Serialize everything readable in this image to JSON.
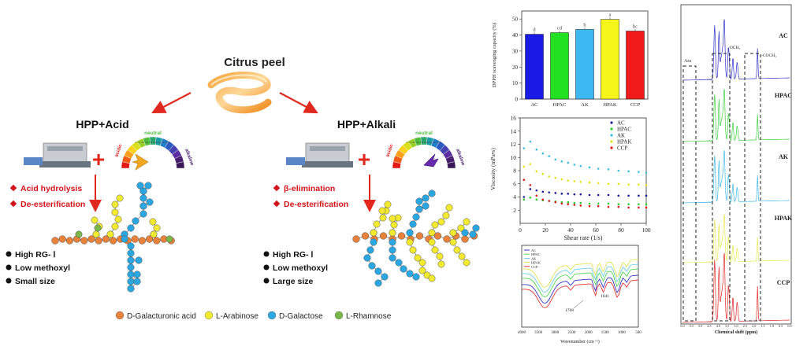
{
  "scheme": {
    "source_title": "Citrus peel",
    "left": {
      "title": "HPP+Acid",
      "steps": [
        "Acid hydrolysis",
        "De-esterification"
      ],
      "props": [
        "High RG- Ⅰ",
        "Low methoxyl",
        "Small size"
      ]
    },
    "right": {
      "title": "HPP+Alkali",
      "steps": [
        "β-elimination",
        "De-esterification"
      ],
      "props": [
        "High RG- Ⅰ",
        "Low methoxyl",
        "Large size"
      ]
    },
    "gauge": {
      "left_word": "acidic",
      "top_word": "neutral",
      "right_word": "alkaline",
      "scale": "0 1 2 3 4 5 6 7 8 9 10 11 12 13 14"
    },
    "legend": [
      {
        "label": "D-Galacturonic acid",
        "color": "#e8823a"
      },
      {
        "label": "L-Arabinose",
        "color": "#f2ea2e"
      },
      {
        "label": "D-Galactose",
        "color": "#2aa6e0"
      },
      {
        "label": "L-Rhamnose",
        "color": "#7ab648"
      }
    ],
    "colors": {
      "arrow": "#e0281e",
      "plus": "#e0281e",
      "step_text": "#d4141c"
    }
  },
  "chart_data": [
    {
      "type": "bar",
      "ylabel": "DPPH scavenging capacity (%)",
      "categories": [
        "AC",
        "HPAC",
        "AK",
        "HPAK",
        "CCP"
      ],
      "values": [
        40.5,
        41.5,
        43.5,
        49.8,
        42.5
      ],
      "letters": [
        "d",
        "cd",
        "b",
        "a",
        "bc"
      ],
      "colors": [
        "#1a1ae6",
        "#22e022",
        "#3db8f0",
        "#f5f51a",
        "#f01a1a"
      ],
      "ylim": [
        0,
        55
      ],
      "yticks": [
        "0",
        "10",
        "20",
        "30",
        "40",
        "50"
      ]
    },
    {
      "type": "scatter",
      "xlabel": "Shear rate (1/s)",
      "ylabel": "Viscosity (mPa•s)",
      "xlim": [
        0,
        100
      ],
      "ylim": [
        0,
        16
      ],
      "xticks": [
        "0",
        "20",
        "40",
        "60",
        "80",
        "100"
      ],
      "yticks": [
        "2",
        "4",
        "6",
        "8",
        "10",
        "12",
        "14",
        "16"
      ],
      "series": [
        {
          "name": "AC",
          "color": "#1a1a9a",
          "x": [
            3,
            8,
            13,
            18,
            23,
            28,
            33,
            38,
            43,
            48,
            55,
            62,
            70,
            78,
            86,
            94,
            100
          ],
          "y": [
            4.0,
            5.2,
            5.0,
            4.8,
            4.7,
            4.6,
            4.5,
            4.5,
            4.4,
            4.4,
            4.3,
            4.3,
            4.3,
            4.2,
            4.2,
            4.2,
            4.2
          ]
        },
        {
          "name": "HPAC",
          "color": "#2ad02a",
          "x": [
            3,
            8,
            13,
            18,
            23,
            28,
            33,
            38,
            43,
            48,
            55,
            62,
            70,
            78,
            86,
            94,
            100
          ],
          "y": [
            3.6,
            3.9,
            3.6,
            3.5,
            3.4,
            3.3,
            3.2,
            3.2,
            3.1,
            3.1,
            3.0,
            3.0,
            3.0,
            2.9,
            2.9,
            2.9,
            2.9
          ]
        },
        {
          "name": "AK",
          "color": "#3dbde0",
          "x": [
            3,
            8,
            13,
            18,
            23,
            28,
            33,
            38,
            43,
            48,
            55,
            62,
            70,
            78,
            86,
            94,
            100
          ],
          "y": [
            11.4,
            12.4,
            11.2,
            10.6,
            10.2,
            9.7,
            9.4,
            9.2,
            8.9,
            8.7,
            8.5,
            8.3,
            8.2,
            8.0,
            7.9,
            7.8,
            7.7
          ]
        },
        {
          "name": "HPAK",
          "color": "#e6e01a",
          "x": [
            3,
            8,
            13,
            18,
            23,
            28,
            33,
            38,
            43,
            48,
            55,
            62,
            70,
            78,
            86,
            94,
            100
          ],
          "y": [
            8.6,
            9.0,
            7.9,
            7.5,
            7.1,
            6.9,
            6.7,
            6.5,
            6.4,
            6.3,
            6.2,
            6.1,
            6.0,
            6.0,
            5.9,
            5.9,
            5.8
          ]
        },
        {
          "name": "CCP",
          "color": "#e01a1a",
          "x": [
            3,
            8,
            13,
            18,
            23,
            28,
            33,
            38,
            43,
            48,
            55,
            62,
            70,
            78,
            86,
            94,
            100
          ],
          "y": [
            6.6,
            5.8,
            4.2,
            3.6,
            3.4,
            3.2,
            3.0,
            2.9,
            2.8,
            2.7,
            2.6,
            2.6,
            2.5,
            2.5,
            2.4,
            2.4,
            2.4
          ]
        }
      ]
    },
    {
      "type": "line",
      "xlabel": "Wavenumber (cm⁻¹)",
      "xticks": [
        "4000",
        "3500",
        "3000",
        "2500",
        "2000",
        "1500",
        "1000",
        "500"
      ],
      "annotations": [
        "1768",
        "1641"
      ],
      "series": [
        {
          "name": "AC",
          "color": "#2020c0"
        },
        {
          "name": "HPAC",
          "color": "#40d040"
        },
        {
          "name": "AK",
          "color": "#60c8e8"
        },
        {
          "name": "HPAK",
          "color": "#e0e040"
        },
        {
          "name": "CCP",
          "color": "#e02020"
        }
      ]
    },
    {
      "type": "line",
      "xlabel": "Chemical shift (ppm)",
      "xticks": [
        "6.0",
        "5.5",
        "5.0",
        "4.5",
        "4.0",
        "3.5",
        "3.0",
        "2.5",
        "2.0",
        "1.5",
        "1.0",
        "0.5",
        "0.0"
      ],
      "annotations": [
        "Ara",
        "-OCH₃",
        "-COCH₃"
      ],
      "series": [
        {
          "name": "AC",
          "color": "#3030c8"
        },
        {
          "name": "HPAC",
          "color": "#40d040"
        },
        {
          "name": "AK",
          "color": "#40b8e8"
        },
        {
          "name": "HPAK",
          "color": "#e8e850"
        },
        {
          "name": "CCP",
          "color": "#e02828"
        }
      ]
    }
  ]
}
